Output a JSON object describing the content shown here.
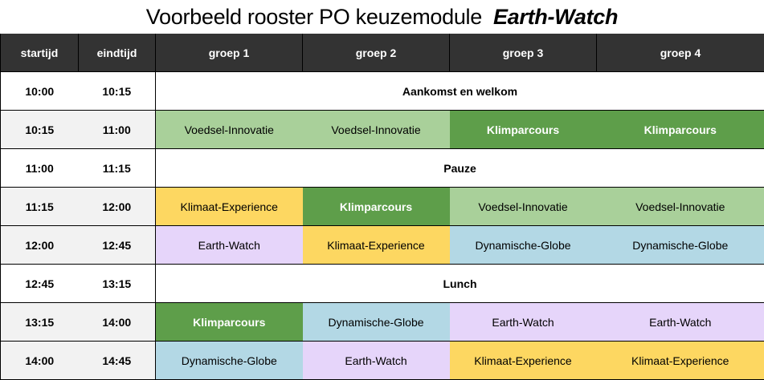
{
  "title": {
    "main": "Voorbeeld rooster PO keuzemodule",
    "emphasis": "Earth-Watch"
  },
  "headers": [
    "startijd",
    "eindtijd",
    "groep 1",
    "groep 2",
    "groep 3",
    "groep 4"
  ],
  "rows": [
    {
      "start": "10:00",
      "end": "10:15",
      "full": "Aankomst en welkom"
    },
    {
      "start": "10:15",
      "end": "11:00",
      "cells": [
        "Voedsel-Innovatie",
        "Voedsel-Innovatie",
        "Klimparcours",
        "Klimparcours"
      ]
    },
    {
      "start": "11:00",
      "end": "11:15",
      "full": "Pauze"
    },
    {
      "start": "11:15",
      "end": "12:00",
      "cells": [
        "Klimaat-Experience",
        "Klimparcours",
        "Voedsel-Innovatie",
        "Voedsel-Innovatie"
      ]
    },
    {
      "start": "12:00",
      "end": "12:45",
      "cells": [
        "Earth-Watch",
        "Klimaat-Experience",
        "Dynamische-Globe",
        "Dynamische-Globe"
      ]
    },
    {
      "start": "12:45",
      "end": "13:15",
      "full": "Lunch"
    },
    {
      "start": "13:15",
      "end": "14:00",
      "cells": [
        "Klimparcours",
        "Dynamische-Globe",
        "Earth-Watch",
        "Earth-Watch"
      ]
    },
    {
      "start": "14:00",
      "end": "14:45",
      "cells": [
        "Dynamische-Globe",
        "Earth-Watch",
        "Klimaat-Experience",
        "Klimaat-Experience"
      ]
    }
  ],
  "colors": {
    "header": "#333333",
    "voedsel": "#a9d09a",
    "klimparcours": "#5e9e4a",
    "klimaat": "#fdd761",
    "earth": "#e6d5fa",
    "globe": "#b3d8e5"
  }
}
